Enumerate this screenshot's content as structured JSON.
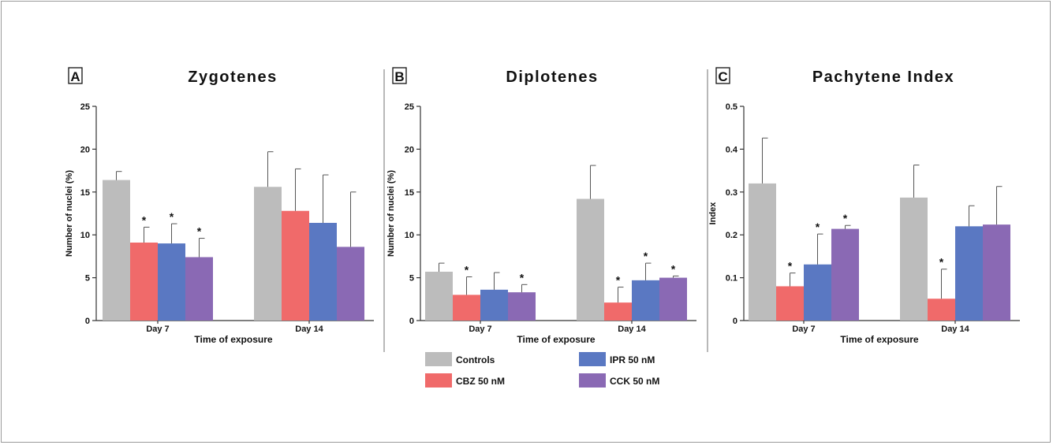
{
  "chart_data": [
    {
      "type": "bar",
      "panel": "A",
      "title": "Zygotenes",
      "xlabel": "Time of exposure",
      "ylabel": "Number of nuclei (%)",
      "categories": [
        "Day 7",
        "Day 14"
      ],
      "ylim": [
        0,
        25
      ],
      "yticks": [
        "0",
        "5",
        "10",
        "15",
        "20",
        "25"
      ],
      "series": [
        {
          "name": "Controls",
          "values": [
            16.4,
            15.6
          ],
          "errors": [
            1.0,
            4.1
          ],
          "sig": [
            false,
            false
          ]
        },
        {
          "name": "CBZ 50 nM",
          "values": [
            9.1,
            12.8
          ],
          "errors": [
            1.8,
            4.9
          ],
          "sig": [
            true,
            false
          ]
        },
        {
          "name": "IPR 50 nM",
          "values": [
            9.0,
            11.4
          ],
          "errors": [
            2.3,
            5.6
          ],
          "sig": [
            true,
            false
          ]
        },
        {
          "name": "CCK 50 nM",
          "values": [
            7.4,
            8.6
          ],
          "errors": [
            2.2,
            6.4
          ],
          "sig": [
            true,
            false
          ]
        }
      ]
    },
    {
      "type": "bar",
      "panel": "B",
      "title": "Diplotenes",
      "xlabel": "Time of exposure",
      "ylabel": "Number of nuclei (%)",
      "categories": [
        "Day 7",
        "Day 14"
      ],
      "ylim": [
        0,
        25
      ],
      "yticks": [
        "0",
        "5",
        "10",
        "15",
        "20",
        "25"
      ],
      "series": [
        {
          "name": "Controls",
          "values": [
            5.7,
            14.2
          ],
          "errors": [
            1.0,
            3.9
          ],
          "sig": [
            false,
            false
          ]
        },
        {
          "name": "CBZ 50 nM",
          "values": [
            3.0,
            2.1
          ],
          "errors": [
            2.1,
            1.8
          ],
          "sig": [
            true,
            true
          ]
        },
        {
          "name": "IPR 50 nM",
          "values": [
            3.6,
            4.7
          ],
          "errors": [
            2.0,
            2.0
          ],
          "sig": [
            false,
            true
          ]
        },
        {
          "name": "CCK 50 nM",
          "values": [
            3.3,
            5.0
          ],
          "errors": [
            0.9,
            0.2
          ],
          "sig": [
            true,
            true
          ]
        }
      ]
    },
    {
      "type": "bar",
      "panel": "C",
      "title": "Pachytene Index",
      "xlabel": "Time of exposure",
      "ylabel": "Index",
      "categories": [
        "Day 7",
        "Day 14"
      ],
      "ylim": [
        0,
        0.5
      ],
      "yticks": [
        "0",
        "0.1",
        "0.2",
        "0.3",
        "0.4",
        "0.5"
      ],
      "series": [
        {
          "name": "Controls",
          "values": [
            0.32,
            0.287
          ],
          "errors": [
            0.106,
            0.076
          ],
          "sig": [
            false,
            false
          ]
        },
        {
          "name": "CBZ 50 nM",
          "values": [
            0.08,
            0.051
          ],
          "errors": [
            0.031,
            0.069
          ],
          "sig": [
            true,
            true
          ]
        },
        {
          "name": "IPR 50 nM",
          "values": [
            0.131,
            0.22
          ],
          "errors": [
            0.071,
            0.048
          ],
          "sig": [
            true,
            false
          ]
        },
        {
          "name": "CCK 50 nM",
          "values": [
            0.214,
            0.224
          ],
          "errors": [
            0.008,
            0.089
          ],
          "sig": [
            true,
            false
          ]
        }
      ]
    }
  ],
  "series_colors": [
    "#bcbcbc",
    "#f06a6a",
    "#5a78c2",
    "#8a69b4"
  ],
  "significance_marker": "*",
  "legend": {
    "placement": "bottom-center",
    "items": [
      "Controls",
      "IPR 50 nM",
      "CBZ 50 nM",
      "CCK 50 nM"
    ]
  }
}
